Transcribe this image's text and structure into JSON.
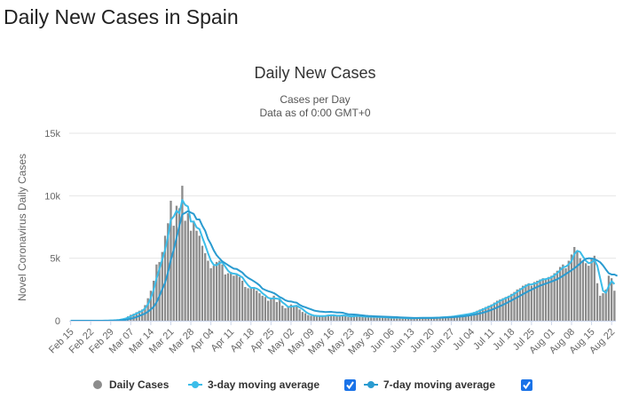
{
  "page": {
    "title": "Daily New Cases in Spain"
  },
  "chart_data": {
    "type": "bar",
    "title": "Daily New Cases",
    "subtitle_lines": [
      "Cases per Day",
      "Data as of 0:00 GMT+0"
    ],
    "xlabel": "",
    "ylabel": "Novel Coronavirus Daily Cases",
    "ylim": [
      0,
      15000
    ],
    "y_ticks": [
      0,
      5000,
      10000,
      15000
    ],
    "y_tick_labels": [
      "0",
      "5k",
      "10k",
      "15k"
    ],
    "x_start_date": "Feb 15",
    "x_ticks": [
      {
        "index": 0,
        "label": "Feb 15"
      },
      {
        "index": 7,
        "label": "Feb 22"
      },
      {
        "index": 14,
        "label": "Feb 29"
      },
      {
        "index": 21,
        "label": "Mar 07"
      },
      {
        "index": 28,
        "label": "Mar 14"
      },
      {
        "index": 35,
        "label": "Mar 21"
      },
      {
        "index": 42,
        "label": "Mar 28"
      },
      {
        "index": 49,
        "label": "Apr 04"
      },
      {
        "index": 56,
        "label": "Apr 11"
      },
      {
        "index": 63,
        "label": "Apr 18"
      },
      {
        "index": 70,
        "label": "Apr 25"
      },
      {
        "index": 77,
        "label": "May 02"
      },
      {
        "index": 84,
        "label": "May 09"
      },
      {
        "index": 91,
        "label": "May 16"
      },
      {
        "index": 98,
        "label": "May 23"
      },
      {
        "index": 105,
        "label": "May 30"
      },
      {
        "index": 112,
        "label": "Jun 06"
      },
      {
        "index": 119,
        "label": "Jun 13"
      },
      {
        "index": 126,
        "label": "Jun 20"
      },
      {
        "index": 133,
        "label": "Jun 27"
      },
      {
        "index": 140,
        "label": "Jul 04"
      },
      {
        "index": 147,
        "label": "Jul 11"
      },
      {
        "index": 154,
        "label": "Jul 18"
      },
      {
        "index": 161,
        "label": "Jul 25"
      },
      {
        "index": 168,
        "label": "Aug 01"
      },
      {
        "index": 175,
        "label": "Aug 08"
      },
      {
        "index": 182,
        "label": "Aug 15"
      },
      {
        "index": 189,
        "label": "Aug 22"
      }
    ],
    "grid": true,
    "legend_position": "bottom-center",
    "series": [
      {
        "name": "Daily Cases",
        "color": "#8c8c8c",
        "values": [
          0,
          0,
          0,
          0,
          0,
          0,
          0,
          0,
          0,
          2,
          5,
          3,
          8,
          15,
          28,
          40,
          65,
          95,
          160,
          220,
          350,
          480,
          560,
          680,
          800,
          900,
          1250,
          1800,
          2400,
          3200,
          4500,
          4700,
          5500,
          6800,
          7800,
          9600,
          7600,
          9200,
          9000,
          10800,
          8000,
          8600,
          7200,
          8000,
          7200,
          6800,
          6000,
          5400,
          4800,
          4200,
          4400,
          4700,
          4800,
          4500,
          3700,
          3800,
          3900,
          3600,
          3700,
          3500,
          3200,
          2700,
          2600,
          2600,
          2700,
          2400,
          2200,
          2000,
          1900,
          1600,
          1800,
          2000,
          1500,
          1700,
          1200,
          1000,
          1100,
          1300,
          1100,
          1200,
          900,
          700,
          600,
          450,
          400,
          380,
          390,
          360,
          380,
          400,
          480,
          420,
          410,
          380,
          420,
          450,
          380,
          300,
          360,
          420,
          380,
          330,
          350,
          320,
          300,
          330,
          300,
          280,
          290,
          300,
          260,
          240,
          230,
          250,
          240,
          220,
          200,
          210,
          190,
          200,
          210,
          220,
          230,
          240,
          210,
          230,
          250,
          240,
          260,
          270,
          290,
          300,
          320,
          350,
          380,
          420,
          450,
          500,
          520,
          560,
          620,
          700,
          800,
          900,
          1000,
          1100,
          1200,
          1300,
          1450,
          1600,
          1700,
          1800,
          1900,
          2000,
          2150,
          2300,
          2500,
          2600,
          2800,
          2900,
          3000,
          2800,
          3100,
          3200,
          3300,
          3400,
          3300,
          3500,
          3600,
          3800,
          4000,
          4300,
          4500,
          4200,
          4800,
          5300,
          5900,
          5600,
          5000,
          4800,
          4600,
          4400,
          5000,
          5200,
          3000,
          2000,
          2200,
          2500,
          3600,
          3400,
          2400
        ]
      },
      {
        "name": "3-day moving average",
        "color": "#3cbde9",
        "values": [
          0,
          0,
          0,
          0,
          0,
          0,
          0,
          0,
          0,
          1,
          3,
          3,
          5,
          9,
          17,
          28,
          44,
          67,
          107,
          158,
          243,
          350,
          463,
          573,
          680,
          793,
          983,
          1317,
          1817,
          2467,
          3367,
          4133,
          4900,
          5667,
          6700,
          8067,
          8333,
          8800,
          8600,
          9667,
          9267,
          9133,
          7933,
          7933,
          7467,
          7333,
          6667,
          6067,
          5400,
          4800,
          4467,
          4433,
          4633,
          4667,
          4333,
          4000,
          3800,
          3767,
          3733,
          3600,
          3467,
          3133,
          2833,
          2633,
          2633,
          2567,
          2433,
          2200,
          2033,
          1833,
          1767,
          1800,
          1767,
          1733,
          1467,
          1300,
          1100,
          1133,
          1167,
          1200,
          1067,
          933,
          733,
          583,
          483,
          410,
          390,
          377,
          377,
          380,
          420,
          433,
          437,
          403,
          403,
          417,
          417,
          377,
          347,
          360,
          387,
          377,
          353,
          333,
          323,
          317,
          310,
          303,
          290,
          290,
          283,
          267,
          243,
          240,
          240,
          237,
          220,
          210,
          200,
          200,
          200,
          210,
          220,
          230,
          227,
          227,
          230,
          240,
          250,
          257,
          273,
          287,
          303,
          323,
          350,
          383,
          417,
          457,
          490,
          527,
          567,
          627,
          707,
          807,
          900,
          1000,
          1100,
          1200,
          1317,
          1450,
          1583,
          1700,
          1800,
          1900,
          2017,
          2150,
          2317,
          2467,
          2633,
          2767,
          2900,
          2900,
          2967,
          3033,
          3200,
          3300,
          3333,
          3400,
          3467,
          3633,
          3800,
          4033,
          4267,
          4333,
          4500,
          4767,
          5333,
          5600,
          5500,
          5133,
          4800,
          4600,
          4667,
          4867,
          4400,
          3400,
          2400,
          2233,
          2767,
          3167,
          2933
        ]
      },
      {
        "name": "7-day moving average",
        "color": "#2a9bd0",
        "values": [
          0,
          0,
          0,
          0,
          0,
          0,
          0,
          0,
          0,
          0,
          1,
          1,
          3,
          4,
          7,
          11,
          18,
          29,
          48,
          73,
          109,
          159,
          217,
          297,
          388,
          484,
          574,
          723,
          904,
          1108,
          1467,
          1961,
          2529,
          3050,
          3843,
          4874,
          5667,
          6634,
          7600,
          8500,
          8629,
          8771,
          8657,
          8543,
          8114,
          8100,
          7600,
          7200,
          6543,
          6129,
          5629,
          5243,
          4986,
          4743,
          4600,
          4450,
          4300,
          4170,
          4140,
          4000,
          3850,
          3600,
          3430,
          3300,
          3160,
          3010,
          2830,
          2570,
          2460,
          2370,
          2300,
          2210,
          2070,
          1900,
          1790,
          1640,
          1560,
          1540,
          1480,
          1440,
          1270,
          1150,
          1080,
          990,
          910,
          820,
          770,
          740,
          720,
          690,
          700,
          710,
          680,
          660,
          660,
          640,
          570,
          520,
          510,
          500,
          480,
          450,
          430,
          400,
          380,
          370,
          360,
          350,
          340,
          330,
          320,
          310,
          300,
          290,
          280,
          270,
          260,
          250,
          240,
          230,
          220,
          220,
          220,
          220,
          220,
          220,
          220,
          220,
          230,
          240,
          250,
          260,
          270,
          280,
          290,
          310,
          330,
          350,
          380,
          410,
          450,
          490,
          530,
          580,
          640,
          710,
          790,
          870,
          960,
          1060,
          1160,
          1270,
          1380,
          1500,
          1620,
          1750,
          1870,
          1990,
          2120,
          2250,
          2370,
          2480,
          2600,
          2700,
          2800,
          2890,
          2970,
          3050,
          3130,
          3220,
          3320,
          3450,
          3590,
          3740,
          3890,
          4040,
          4200,
          4380,
          4580,
          4790,
          4950,
          5000,
          4980,
          4930,
          4820,
          4680,
          4420,
          4100,
          3800,
          3700,
          3700,
          3580
        ]
      }
    ]
  }
}
